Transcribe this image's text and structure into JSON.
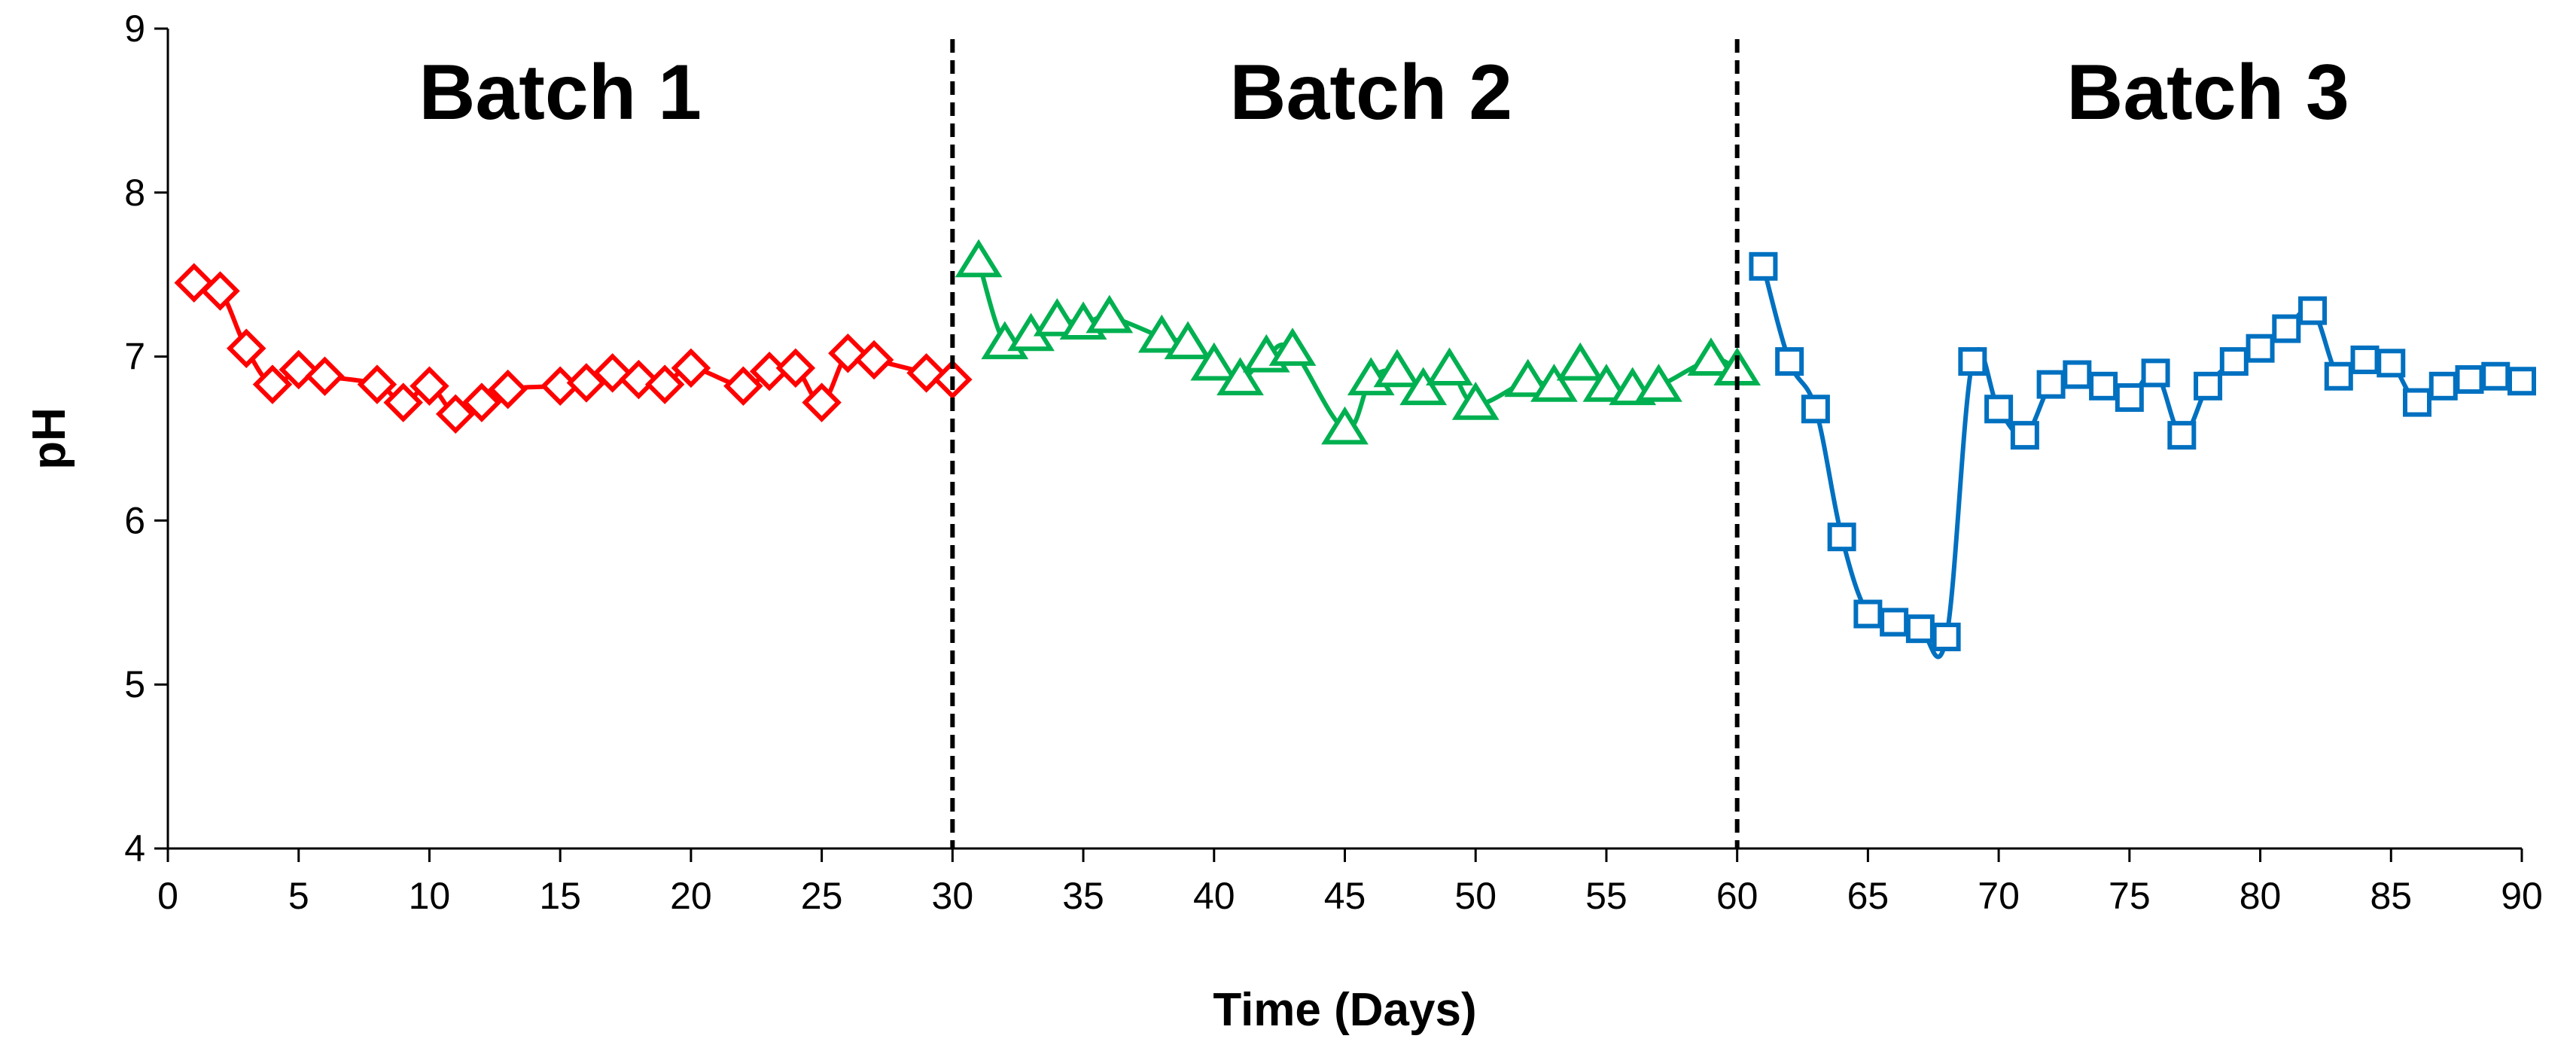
{
  "chart_data": {
    "type": "line",
    "title": "",
    "xlabel": "Time (Days)",
    "ylabel": "pH",
    "xlim": [
      0,
      90
    ],
    "ylim": [
      4,
      9
    ],
    "xticks": [
      0,
      5,
      10,
      15,
      20,
      25,
      30,
      35,
      40,
      45,
      50,
      55,
      60,
      65,
      70,
      75,
      80,
      85,
      90
    ],
    "yticks": [
      4,
      5,
      6,
      7,
      8,
      9
    ],
    "grid": false,
    "dividers": [
      30,
      60
    ],
    "annotations": [
      {
        "text": "Batch 1",
        "x": 15,
        "y": 8.45
      },
      {
        "text": "Batch 2",
        "x": 46,
        "y": 8.45
      },
      {
        "text": "Batch 3",
        "x": 78,
        "y": 8.45
      }
    ],
    "series": [
      {
        "name": "Batch 1",
        "color": "#FF0000",
        "marker": "diamond",
        "x": [
          1,
          2,
          3,
          4,
          5,
          6,
          8,
          9,
          10,
          11,
          12,
          13,
          15,
          16,
          17,
          18,
          19,
          20,
          22,
          23,
          24,
          25,
          26,
          27,
          29,
          30
        ],
        "y": [
          7.45,
          7.4,
          7.05,
          6.83,
          6.92,
          6.88,
          6.83,
          6.72,
          6.82,
          6.65,
          6.72,
          6.8,
          6.82,
          6.84,
          6.9,
          6.86,
          6.83,
          6.93,
          6.82,
          6.91,
          6.93,
          6.72,
          7.02,
          6.98,
          6.9,
          6.86
        ]
      },
      {
        "name": "Batch 2",
        "color": "#00B050",
        "marker": "triangle",
        "x": [
          31,
          32,
          33,
          34,
          35,
          36,
          38,
          39,
          40,
          41,
          42,
          43,
          45,
          46,
          47,
          48,
          49,
          50,
          52,
          53,
          54,
          55,
          56,
          57,
          59,
          60
        ],
        "y": [
          7.58,
          7.08,
          7.13,
          7.22,
          7.2,
          7.24,
          7.12,
          7.08,
          6.95,
          6.86,
          7.0,
          7.04,
          6.56,
          6.86,
          6.91,
          6.8,
          6.92,
          6.71,
          6.85,
          6.82,
          6.95,
          6.82,
          6.8,
          6.82,
          6.98,
          6.92
        ]
      },
      {
        "name": "Batch 3",
        "color": "#0070C0",
        "marker": "square",
        "x": [
          61,
          62,
          63,
          64,
          65,
          66,
          67,
          68,
          69,
          70,
          71,
          72,
          73,
          74,
          75,
          76,
          77,
          78,
          79,
          80,
          81,
          82,
          83,
          84,
          85,
          86,
          87,
          88,
          89,
          90
        ],
        "y": [
          7.55,
          6.97,
          6.68,
          5.9,
          5.43,
          5.38,
          5.34,
          5.29,
          6.97,
          6.68,
          6.52,
          6.83,
          6.89,
          6.82,
          6.75,
          6.9,
          6.52,
          6.82,
          6.97,
          7.05,
          7.17,
          7.28,
          6.88,
          6.98,
          6.96,
          6.72,
          6.82,
          6.86,
          6.88,
          6.85
        ]
      }
    ]
  }
}
